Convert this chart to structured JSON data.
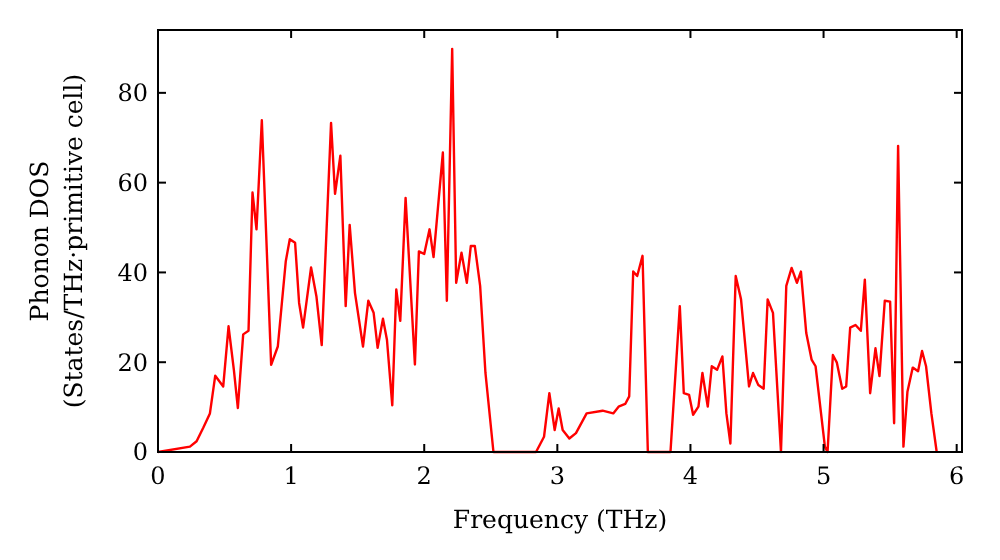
{
  "chart_data": {
    "type": "line",
    "xlabel": "Frequency (THz)",
    "ylabel": "Phonon DOS\n(States/THz·primitive cell)",
    "xlim": [
      0,
      6.04
    ],
    "ylim": [
      0,
      94
    ],
    "xticks": [
      0,
      1,
      2,
      3,
      4,
      5,
      6
    ],
    "yticks": [
      0,
      20,
      40,
      60,
      80
    ],
    "grid": false,
    "series": [
      {
        "color": "#ff0000",
        "x": [
          0,
          0.24,
          0.29,
          0.34,
          0.39,
          0.43,
          0.49,
          0.53,
          0.57,
          0.6,
          0.64,
          0.68,
          0.71,
          0.74,
          0.78,
          0.85,
          0.9,
          0.96,
          0.99,
          1.03,
          1.06,
          1.09,
          1.15,
          1.19,
          1.23,
          1.3,
          1.33,
          1.37,
          1.41,
          1.44,
          1.48,
          1.54,
          1.58,
          1.62,
          1.65,
          1.69,
          1.72,
          1.76,
          1.79,
          1.82,
          1.86,
          1.93,
          1.96,
          2.0,
          2.04,
          2.07,
          2.14,
          2.17,
          2.21,
          2.24,
          2.28,
          2.32,
          2.35,
          2.38,
          2.42,
          2.46,
          2.52,
          2.84,
          2.9,
          2.94,
          2.98,
          3.01,
          3.04,
          3.09,
          3.14,
          3.22,
          3.34,
          3.42,
          3.46,
          3.51,
          3.54,
          3.57,
          3.6,
          3.64,
          3.68,
          3.85,
          3.92,
          3.95,
          3.99,
          4.02,
          4.06,
          4.09,
          4.13,
          4.16,
          4.2,
          4.24,
          4.27,
          4.3,
          4.34,
          4.38,
          4.44,
          4.47,
          4.51,
          4.55,
          4.58,
          4.62,
          4.68,
          4.72,
          4.76,
          4.8,
          4.83,
          4.87,
          4.91,
          4.94,
          5.01,
          5.03,
          5.07,
          5.1,
          5.14,
          5.17,
          5.2,
          5.24,
          5.28,
          5.31,
          5.35,
          5.39,
          5.42,
          5.46,
          5.5,
          5.53,
          5.56,
          5.6,
          5.63,
          5.67,
          5.71,
          5.74,
          5.77,
          5.81,
          5.85
        ],
        "values": [
          0,
          1.2,
          2.4,
          5.4,
          8.6,
          17,
          14.6,
          28,
          18.3,
          9.8,
          26.2,
          27,
          57.8,
          49.6,
          73.9,
          19.4,
          23.5,
          42.5,
          47.4,
          46.6,
          33.2,
          27.7,
          41.1,
          34.7,
          23.8,
          73.3,
          57.5,
          66,
          32.5,
          50.6,
          35.4,
          23.5,
          33.7,
          31,
          23.2,
          29.7,
          25,
          10.4,
          36.2,
          29.2,
          56.6,
          19.5,
          44.7,
          44.1,
          49.6,
          43.4,
          66.7,
          33.7,
          89.8,
          37.7,
          44.4,
          37.7,
          45.9,
          45.9,
          37,
          17.6,
          0,
          0,
          3.4,
          13.1,
          4.9,
          9.7,
          4.9,
          3,
          4.2,
          8.6,
          9.2,
          8.6,
          10.1,
          10.7,
          12.4,
          40.2,
          39.2,
          43.7,
          0,
          0,
          32.5,
          13.1,
          12.7,
          8.3,
          10.1,
          17.6,
          10.1,
          19.1,
          18.3,
          21.3,
          8.6,
          1.9,
          39.2,
          34,
          14.6,
          17.6,
          14.9,
          14.1,
          34,
          31,
          0,
          37,
          41,
          37.7,
          40.2,
          26.5,
          20.6,
          19.1,
          1.2,
          0,
          21.6,
          19.9,
          14.1,
          14.6,
          27.7,
          28.3,
          27,
          38.4,
          13.1,
          23.1,
          16.9,
          33.7,
          33.5,
          6.4,
          68.2,
          1.2,
          13.4,
          18.8,
          18,
          22.5,
          19.1,
          8.6,
          0
        ]
      }
    ]
  }
}
